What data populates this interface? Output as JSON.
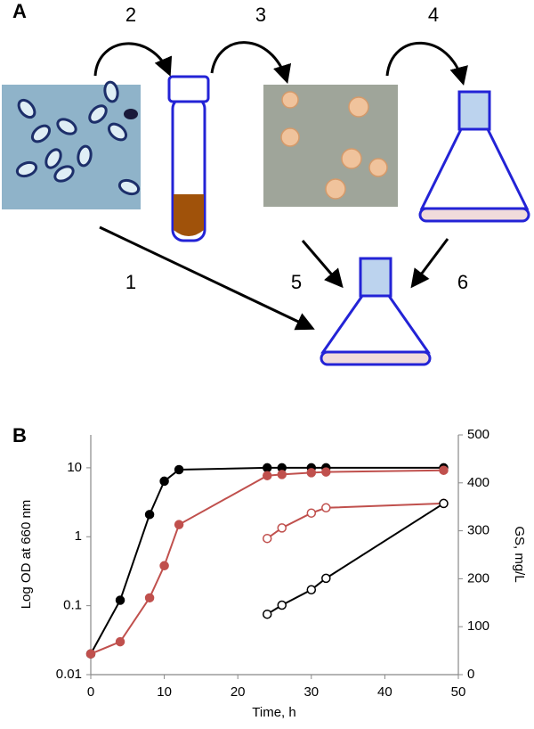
{
  "panel_a": {
    "label": "A",
    "steps": [
      "1",
      "2",
      "3",
      "4",
      "5",
      "6"
    ]
  },
  "panel_b_label": "B",
  "chart_data": {
    "type": "line",
    "x_label": "Time, h",
    "y_label": "Log OD at 660 nm",
    "y2_label": "GS, mg/L",
    "xlim": [
      0,
      50
    ],
    "xticks": [
      0,
      10,
      20,
      30,
      40,
      50
    ],
    "ylim": [
      0.01,
      30
    ],
    "yticks": [
      0.01,
      0.1,
      1,
      10
    ],
    "log_y": true,
    "y2lim": [
      0,
      500
    ],
    "y2ticks": [
      0,
      100,
      200,
      300,
      400,
      500
    ],
    "series": [
      {
        "color": "#000000",
        "marker": "filled",
        "x": [
          0,
          4,
          8,
          10,
          12,
          24,
          26,
          30,
          32,
          48
        ],
        "values": [
          0.02,
          0.12,
          2.1,
          6.4,
          9.4,
          10,
          10,
          10,
          10,
          10
        ]
      },
      {
        "color": "#c0504d",
        "marker": "filled",
        "x": [
          0,
          4,
          8,
          10,
          12,
          24,
          26,
          30,
          32,
          48
        ],
        "values": [
          0.02,
          0.03,
          0.13,
          0.38,
          1.5,
          7.7,
          8,
          8.5,
          8.7,
          9.2
        ]
      },
      {
        "color": "#c0504d",
        "marker": "open",
        "axis": "y2",
        "x": [
          24,
          26,
          30,
          32,
          48
        ],
        "values": [
          284,
          306,
          337,
          348,
          357
        ]
      },
      {
        "color": "#000000",
        "marker": "open",
        "axis": "y2",
        "x": [
          24,
          26,
          30,
          32,
          48
        ],
        "values": [
          126,
          145,
          177,
          201,
          357
        ]
      }
    ]
  }
}
